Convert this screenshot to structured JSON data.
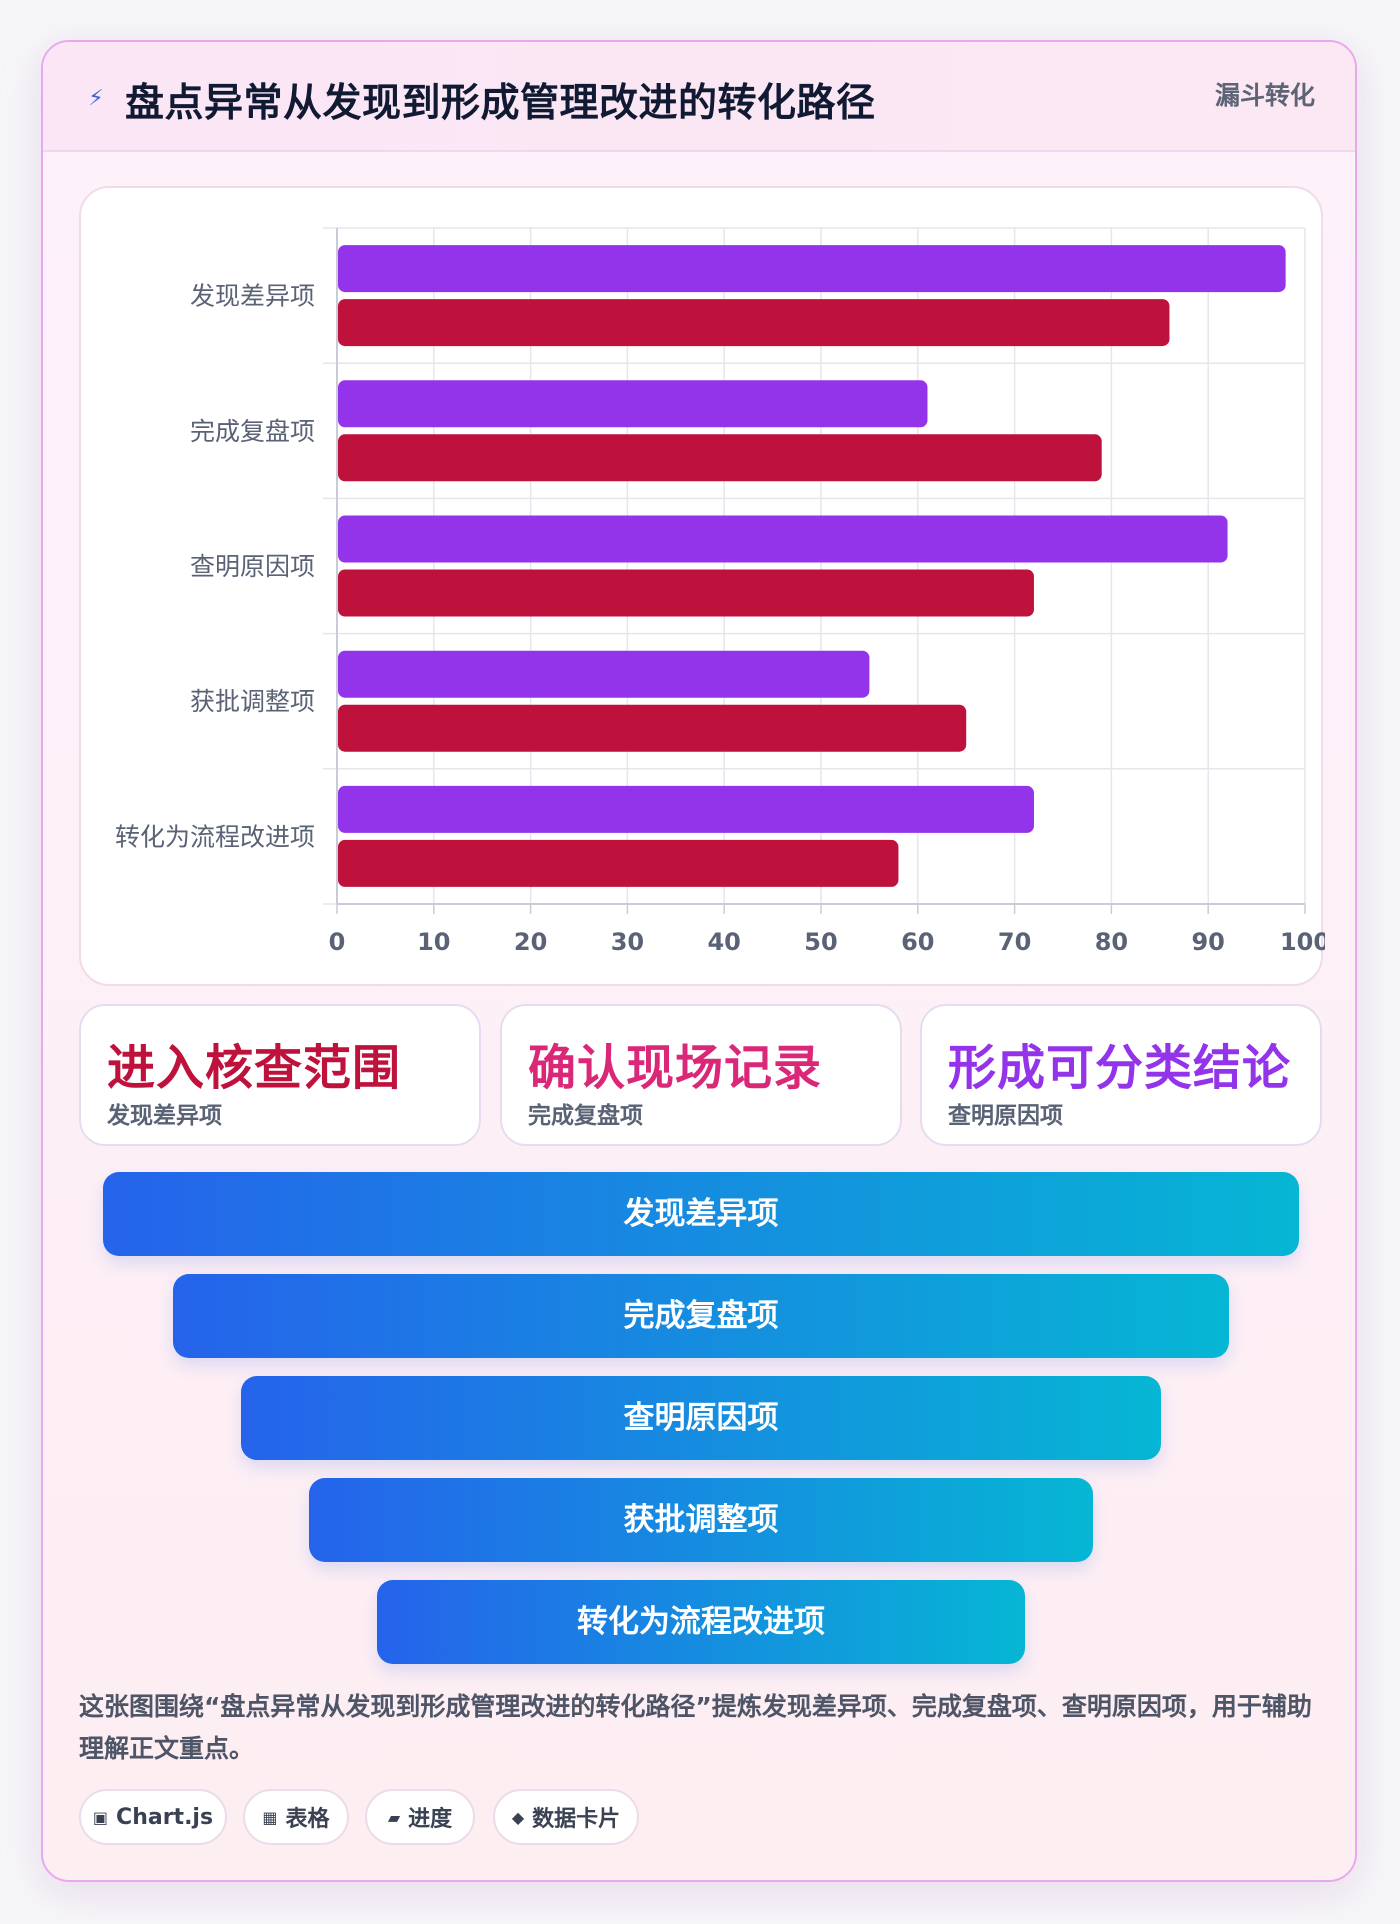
{
  "header": {
    "icon": "lightning-icon",
    "icon_glyph": "⚡",
    "title": "盘点异常从发现到形成管理改进的转化路径",
    "tag": "漏斗转化"
  },
  "chart_data": {
    "type": "bar",
    "orientation": "horizontal",
    "categories": [
      "发现差异项",
      "完成复盘项",
      "查明原因项",
      "获批调整项",
      "转化为流程改进项"
    ],
    "series": [
      {
        "values": [
          98,
          61,
          92,
          55,
          72
        ],
        "color": "#9333ea"
      },
      {
        "values": [
          86,
          79,
          72,
          65,
          58
        ],
        "color": "#be123c"
      }
    ],
    "xlim": [
      0,
      100
    ],
    "xticks": [
      0,
      10,
      20,
      30,
      40,
      50,
      60,
      70,
      80,
      90,
      100
    ],
    "grid": true,
    "legend": "none"
  },
  "stats": [
    {
      "value": "进入核查范围",
      "label": "发现差异项",
      "color": "#be123c"
    },
    {
      "value": "确认现场记录",
      "label": "完成复盘项",
      "color": "#db2777"
    },
    {
      "value": "形成可分类结论",
      "label": "查明原因项",
      "color": "#9333ea"
    }
  ],
  "funnel": [
    "发现差异项",
    "完成复盘项",
    "查明原因项",
    "获批调整项",
    "转化为流程改进项"
  ],
  "description": "这张图围绕“盘点异常从发现到形成管理改进的转化路径”提炼发现差异项、完成复盘项、查明原因项，用于辅助理解正文重点。",
  "chips": [
    {
      "icon": "chart-icon",
      "glyph": "▣",
      "label": "Chart.js"
    },
    {
      "icon": "table-icon",
      "glyph": "▦",
      "label": "表格"
    },
    {
      "icon": "progress-icon",
      "glyph": "▰",
      "label": "进度"
    },
    {
      "icon": "diamond-icon",
      "glyph": "◆",
      "label": "数据卡片"
    }
  ]
}
